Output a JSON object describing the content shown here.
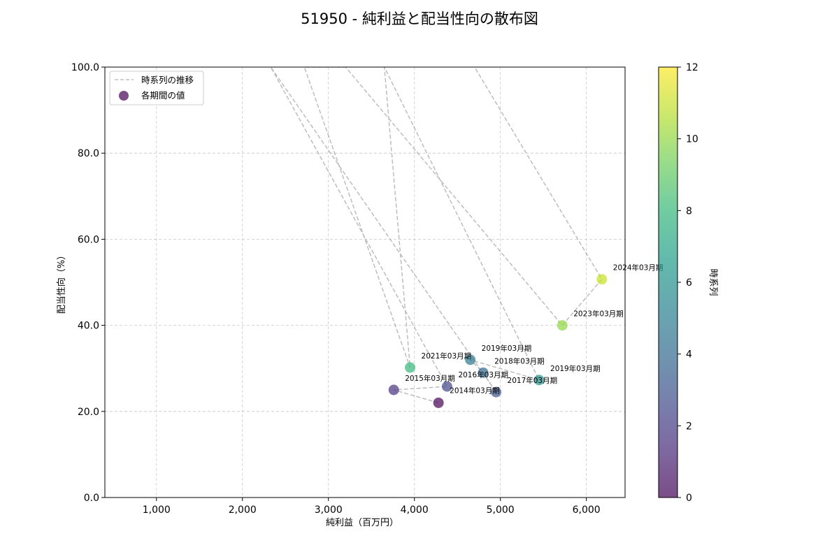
{
  "chart_data": {
    "type": "scatter",
    "title": "51950 - 純利益と配当性向の散布図",
    "xlabel": "純利益（百万円）",
    "ylabel": "配当性向（%）",
    "xlim": [
      400,
      6450
    ],
    "ylim": [
      0,
      100
    ],
    "x_ticks": [
      1000,
      2000,
      3000,
      4000,
      5000,
      6000
    ],
    "x_tick_labels": [
      "1,000",
      "2,000",
      "3,000",
      "4,000",
      "5,000",
      "6,000"
    ],
    "y_ticks": [
      0,
      20,
      40,
      60,
      80,
      100
    ],
    "y_tick_labels": [
      "0.0",
      "20.0",
      "40.0",
      "60.0",
      "80.0",
      "100.0"
    ],
    "grid": true,
    "legend": {
      "placement": "top-left",
      "entries": [
        "時系列の推移",
        "各期間の値"
      ]
    },
    "colorbar": {
      "label": "時系列",
      "min": 0,
      "max": 12,
      "ticks": [
        0,
        2,
        4,
        6,
        8,
        10,
        12
      ],
      "tick_labels": [
        "0",
        "2",
        "4",
        "6",
        "8",
        "10",
        "12"
      ],
      "colormap": [
        "#440154",
        "#482878",
        "#3e4989",
        "#31688e",
        "#26828e",
        "#1f9e89",
        "#35b779",
        "#6ece58",
        "#b5de2b",
        "#fde725"
      ]
    },
    "line_path": [
      {
        "x": 4280,
        "y": 22.0
      },
      {
        "x": 3760,
        "y": 25.0
      },
      {
        "x": 4380,
        "y": 25.8
      },
      {
        "x": 2330,
        "y": 100.0
      },
      {
        "x": 4950,
        "y": 24.5
      },
      {
        "x": 4800,
        "y": 29.0
      },
      {
        "x": 4650,
        "y": 32.0
      },
      {
        "x": 5450,
        "y": 27.3
      },
      {
        "x": 3650,
        "y": 100.0
      },
      {
        "x": 3950,
        "y": 30.2
      },
      {
        "x": 2720,
        "y": 100.0
      },
      {
        "x": 3200,
        "y": 100.0
      },
      {
        "x": 5720,
        "y": 40.0
      },
      {
        "x": 6180,
        "y": 50.7
      },
      {
        "x": 4700,
        "y": 100.0
      }
    ],
    "points": [
      {
        "label": "2014年03月期",
        "x": 4280,
        "y": 22.0,
        "t": 0,
        "color": "#440154",
        "anchor": "below"
      },
      {
        "label": "2015年03月期",
        "x": 3760,
        "y": 25.0,
        "t": 1,
        "color": "#46317e",
        "anchor": "above-right"
      },
      {
        "label": "2016年03月期",
        "x": 4380,
        "y": 25.8,
        "t": 2,
        "color": "#414487",
        "anchor": "above-right"
      },
      {
        "label": "2017年03月期",
        "x": 4950,
        "y": 24.5,
        "t": 3,
        "color": "#3b528b",
        "anchor": "above-right"
      },
      {
        "label": "2018年03月期",
        "x": 4800,
        "y": 29.0,
        "t": 4,
        "color": "#31688e",
        "anchor": "above-right"
      },
      {
        "label": "2019年03月期",
        "x": 4650,
        "y": 32.0,
        "t": 5,
        "color": "#2a788e",
        "anchor": "above-right"
      },
      {
        "label": "2019年03月期",
        "x": 5450,
        "y": 27.3,
        "t": 6,
        "color": "#21918c",
        "anchor": "above-right"
      },
      {
        "label": "2021年03月期",
        "x": 3950,
        "y": 30.2,
        "t": 8,
        "color": "#35b779",
        "anchor": "above-right"
      },
      {
        "label": "2023年03月期",
        "x": 5720,
        "y": 40.0,
        "t": 10,
        "color": "#90d743",
        "anchor": "above-right"
      },
      {
        "label": "2024年03月期",
        "x": 6180,
        "y": 50.7,
        "t": 11,
        "color": "#c8e020",
        "anchor": "above-right"
      }
    ]
  }
}
